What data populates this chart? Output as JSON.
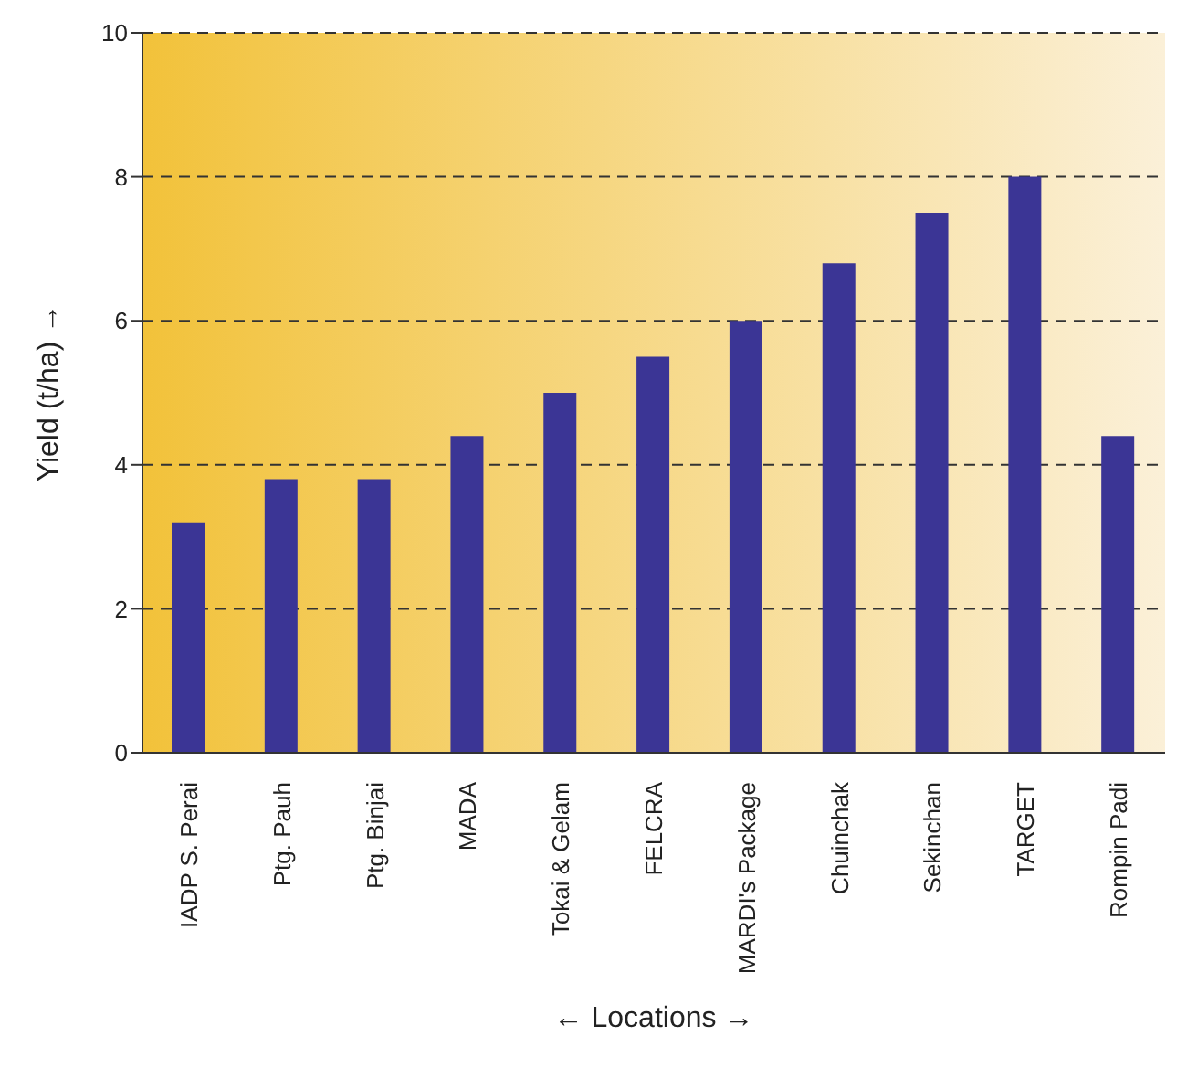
{
  "chart_data": {
    "type": "bar",
    "xlabel": "← Locations →",
    "ylabel": "Yield (t/ha) →",
    "categories": [
      "IADP S. Perai",
      "Ptg. Pauh",
      "Ptg. Binjai",
      "MADA",
      "Tokai & Gelam",
      "FELCRA",
      "MARDI's Package",
      "Chuinchak",
      "Sekinchan",
      "TARGET",
      "Rompin Padi"
    ],
    "values": [
      3.2,
      3.8,
      3.8,
      4.4,
      5.0,
      5.5,
      6.0,
      6.8,
      7.5,
      8.0,
      4.4
    ],
    "color": "#3b3595",
    "ylim": [
      0,
      10
    ],
    "yticks": [
      0,
      2,
      4,
      6,
      8,
      10
    ],
    "grid": "y"
  }
}
